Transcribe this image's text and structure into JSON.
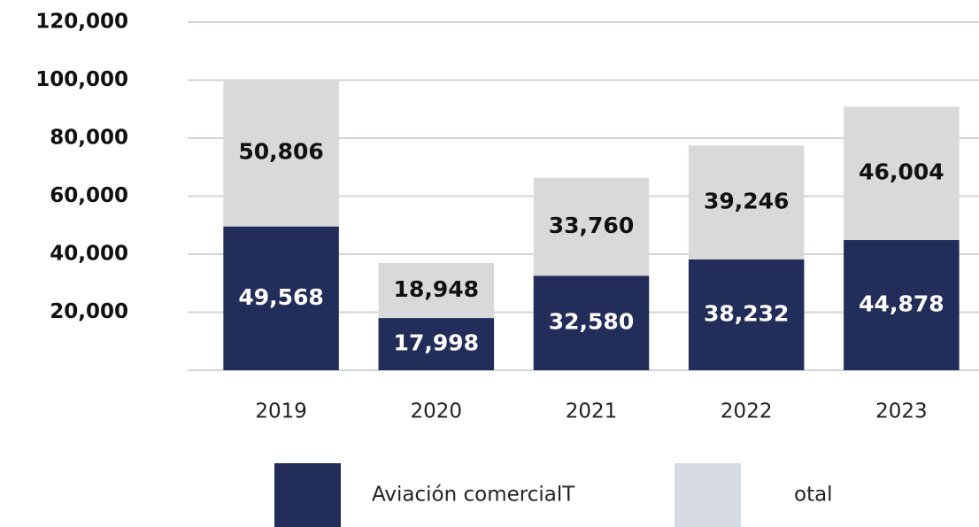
{
  "chart_data": {
    "type": "stacked_bar",
    "categories": [
      "2019",
      "2020",
      "2021",
      "2022",
      "2023"
    ],
    "series": [
      {
        "name": "Aviación comercialT",
        "color": "#222d5a",
        "values": [
          49568,
          17998,
          32580,
          38232,
          44878
        ],
        "value_labels": [
          "49,568",
          "17,998",
          "32,580",
          "38,232",
          "44,878"
        ]
      },
      {
        "name": "otal",
        "color": "#d9d9d9",
        "values": [
          50806,
          18948,
          33760,
          39246,
          46004
        ],
        "value_labels": [
          "50,806",
          "18,948",
          "33,760",
          "39,246",
          "46,004"
        ]
      }
    ],
    "ylim": [
      0,
      120000
    ],
    "yticks": [
      {
        "value": 20000,
        "label": "20,000"
      },
      {
        "value": 40000,
        "label": "40,000"
      },
      {
        "value": 60000,
        "label": "60,000"
      },
      {
        "value": 80000,
        "label": "80,000"
      },
      {
        "value": 100000,
        "label": "100,000"
      },
      {
        "value": 120000,
        "label": "120,000"
      }
    ],
    "grid": true,
    "legend": "bottom"
  }
}
